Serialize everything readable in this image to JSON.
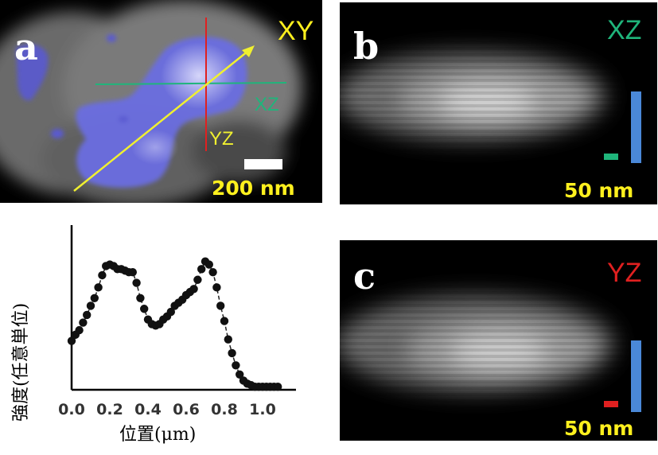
{
  "panel_a": {
    "letter": "a",
    "plane": "XY",
    "line_labels": {
      "xz": "XZ",
      "yz": "YZ"
    },
    "scale_label": "200 nm"
  },
  "panel_b": {
    "letter": "b",
    "plane": "XZ",
    "scale_label": "50 nm"
  },
  "panel_c": {
    "letter": "c",
    "plane": "YZ",
    "scale_label": "50 nm"
  },
  "colors": {
    "xy_label": "#fff01e",
    "xz_label": "#1fb57b",
    "yz_label": "#e02020",
    "scale_bar_blue": "#4a88d8",
    "overlay_blue": "#6a6ee0"
  },
  "chart_data": {
    "type": "scatter",
    "title": "",
    "xlabel": "位置(μm)",
    "ylabel": "強度(任意単位)",
    "xlim": [
      0.0,
      1.1
    ],
    "ylim": [
      0.0,
      1.0
    ],
    "x_ticks": [
      "0.0",
      "0.2",
      "0.4",
      "0.6",
      "0.8",
      "1.0"
    ],
    "x_tick_values": [
      0.0,
      0.2,
      0.4,
      0.6,
      0.8,
      1.0
    ],
    "connected": true,
    "x": [
      0.0,
      0.02,
      0.04,
      0.06,
      0.08,
      0.1,
      0.12,
      0.14,
      0.16,
      0.18,
      0.2,
      0.22,
      0.24,
      0.26,
      0.28,
      0.3,
      0.32,
      0.34,
      0.36,
      0.38,
      0.4,
      0.42,
      0.44,
      0.46,
      0.48,
      0.5,
      0.52,
      0.54,
      0.56,
      0.58,
      0.6,
      0.62,
      0.64,
      0.66,
      0.68,
      0.7,
      0.72,
      0.74,
      0.76,
      0.78,
      0.8,
      0.82,
      0.84,
      0.86,
      0.88,
      0.9,
      0.92,
      0.94,
      0.96,
      0.98,
      1.0,
      1.02,
      1.04,
      1.06,
      1.08
    ],
    "y": [
      0.32,
      0.36,
      0.39,
      0.44,
      0.49,
      0.55,
      0.6,
      0.67,
      0.75,
      0.81,
      0.82,
      0.81,
      0.79,
      0.79,
      0.78,
      0.77,
      0.77,
      0.7,
      0.6,
      0.53,
      0.46,
      0.43,
      0.42,
      0.43,
      0.46,
      0.48,
      0.51,
      0.55,
      0.57,
      0.59,
      0.62,
      0.64,
      0.66,
      0.72,
      0.79,
      0.84,
      0.82,
      0.77,
      0.67,
      0.55,
      0.45,
      0.33,
      0.24,
      0.16,
      0.1,
      0.06,
      0.04,
      0.03,
      0.02,
      0.02,
      0.02,
      0.02,
      0.02,
      0.02,
      0.02
    ]
  }
}
